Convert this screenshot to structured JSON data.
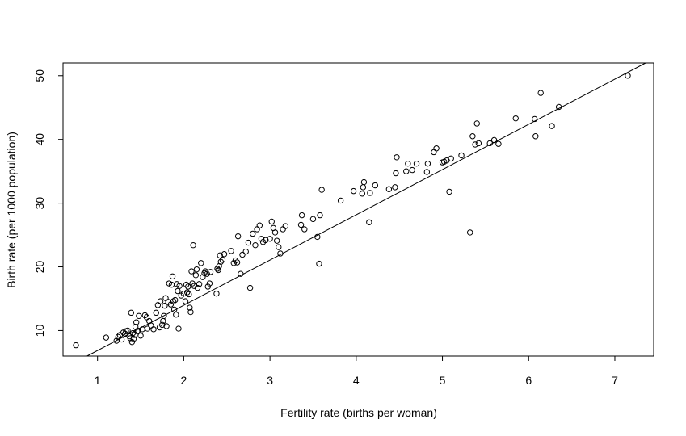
{
  "chart_data": {
    "type": "scatter",
    "title": "",
    "xlabel": "Fertility rate (births per woman)",
    "ylabel": "Birth rate (per 1000 population)",
    "xlim": [
      0.6,
      7.45
    ],
    "ylim": [
      6.0,
      52.0
    ],
    "xticks": [
      1,
      2,
      3,
      4,
      5,
      6,
      7
    ],
    "yticks": [
      10,
      20,
      30,
      40,
      50
    ],
    "grid": false,
    "legend": "none",
    "colors": {
      "points": "#000000",
      "line": "#000000",
      "frame": "#000000"
    },
    "fit_line": {
      "intercept": -0.23,
      "slope": 7.1
    },
    "series": [
      {
        "points": [
          [
            0.75,
            7.7
          ],
          [
            1.1,
            8.9
          ],
          [
            1.22,
            8.4
          ],
          [
            1.24,
            9.0
          ],
          [
            1.26,
            9.3
          ],
          [
            1.28,
            8.6
          ],
          [
            1.3,
            9.7
          ],
          [
            1.32,
            9.5
          ],
          [
            1.33,
            9.9
          ],
          [
            1.35,
            10.0
          ],
          [
            1.37,
            9.1
          ],
          [
            1.38,
            8.8
          ],
          [
            1.39,
            12.8
          ],
          [
            1.4,
            8.2
          ],
          [
            1.41,
            9.6
          ],
          [
            1.42,
            8.7
          ],
          [
            1.43,
            9.3
          ],
          [
            1.44,
            10.6
          ],
          [
            1.45,
            11.3
          ],
          [
            1.46,
            9.9
          ],
          [
            1.47,
            10.0
          ],
          [
            1.48,
            12.3
          ],
          [
            1.5,
            9.2
          ],
          [
            1.52,
            10.2
          ],
          [
            1.55,
            12.4
          ],
          [
            1.57,
            12.1
          ],
          [
            1.58,
            10.3
          ],
          [
            1.6,
            11.5
          ],
          [
            1.62,
            10.8
          ],
          [
            1.65,
            10.2
          ],
          [
            1.68,
            12.8
          ],
          [
            1.7,
            14.0
          ],
          [
            1.72,
            10.5
          ],
          [
            1.73,
            14.6
          ],
          [
            1.75,
            10.9
          ],
          [
            1.76,
            11.5
          ],
          [
            1.77,
            12.3
          ],
          [
            1.78,
            13.9
          ],
          [
            1.79,
            15.1
          ],
          [
            1.8,
            10.7
          ],
          [
            1.82,
            14.5
          ],
          [
            1.83,
            17.4
          ],
          [
            1.85,
            14.1
          ],
          [
            1.86,
            17.2
          ],
          [
            1.87,
            18.5
          ],
          [
            1.88,
            14.6
          ],
          [
            1.89,
            13.3
          ],
          [
            1.9,
            14.8
          ],
          [
            1.91,
            12.5
          ],
          [
            1.92,
            17.3
          ],
          [
            1.93,
            16.2
          ],
          [
            1.94,
            10.3
          ],
          [
            1.95,
            17.0
          ],
          [
            1.97,
            15.5
          ],
          [
            2.0,
            15.8
          ],
          [
            2.02,
            14.6
          ],
          [
            2.03,
            17.2
          ],
          [
            2.04,
            16.0
          ],
          [
            2.05,
            16.9
          ],
          [
            2.06,
            15.7
          ],
          [
            2.07,
            13.6
          ],
          [
            2.08,
            12.9
          ],
          [
            2.09,
            19.3
          ],
          [
            2.1,
            17.4
          ],
          [
            2.11,
            23.4
          ],
          [
            2.12,
            17.0
          ],
          [
            2.14,
            18.7
          ],
          [
            2.15,
            19.6
          ],
          [
            2.16,
            16.7
          ],
          [
            2.18,
            17.3
          ],
          [
            2.2,
            20.6
          ],
          [
            2.22,
            18.4
          ],
          [
            2.24,
            19.0
          ],
          [
            2.25,
            19.3
          ],
          [
            2.27,
            18.9
          ],
          [
            2.28,
            16.9
          ],
          [
            2.3,
            17.4
          ],
          [
            2.31,
            19.2
          ],
          [
            2.38,
            15.8
          ],
          [
            2.39,
            19.7
          ],
          [
            2.4,
            19.5
          ],
          [
            2.41,
            20.1
          ],
          [
            2.42,
            21.8
          ],
          [
            2.43,
            20.8
          ],
          [
            2.45,
            21.1
          ],
          [
            2.47,
            22.0
          ],
          [
            2.55,
            22.5
          ],
          [
            2.58,
            20.6
          ],
          [
            2.6,
            21.0
          ],
          [
            2.62,
            20.7
          ],
          [
            2.63,
            24.8
          ],
          [
            2.66,
            18.9
          ],
          [
            2.68,
            21.9
          ],
          [
            2.72,
            22.4
          ],
          [
            2.75,
            23.8
          ],
          [
            2.77,
            16.7
          ],
          [
            2.8,
            25.2
          ],
          [
            2.83,
            23.4
          ],
          [
            2.85,
            25.9
          ],
          [
            2.88,
            26.5
          ],
          [
            2.9,
            24.4
          ],
          [
            2.92,
            23.9
          ],
          [
            2.95,
            24.2
          ],
          [
            3.0,
            24.4
          ],
          [
            3.02,
            27.1
          ],
          [
            3.04,
            26.1
          ],
          [
            3.06,
            25.4
          ],
          [
            3.08,
            24.1
          ],
          [
            3.1,
            23.1
          ],
          [
            3.12,
            22.1
          ],
          [
            3.15,
            25.9
          ],
          [
            3.18,
            26.4
          ],
          [
            3.36,
            26.6
          ],
          [
            3.37,
            28.1
          ],
          [
            3.4,
            25.9
          ],
          [
            3.5,
            27.5
          ],
          [
            3.55,
            24.7
          ],
          [
            3.57,
            20.5
          ],
          [
            3.58,
            28.1
          ],
          [
            3.6,
            32.1
          ],
          [
            3.82,
            30.4
          ],
          [
            3.97,
            31.9
          ],
          [
            4.07,
            31.5
          ],
          [
            4.08,
            32.5
          ],
          [
            4.09,
            33.3
          ],
          [
            4.15,
            27.0
          ],
          [
            4.16,
            31.6
          ],
          [
            4.22,
            32.8
          ],
          [
            4.38,
            32.2
          ],
          [
            4.45,
            32.5
          ],
          [
            4.46,
            34.7
          ],
          [
            4.47,
            37.2
          ],
          [
            4.58,
            35.0
          ],
          [
            4.6,
            36.2
          ],
          [
            4.65,
            35.2
          ],
          [
            4.7,
            36.2
          ],
          [
            4.82,
            34.9
          ],
          [
            4.83,
            36.2
          ],
          [
            4.9,
            38.0
          ],
          [
            4.93,
            38.6
          ],
          [
            5.0,
            36.4
          ],
          [
            5.02,
            36.5
          ],
          [
            5.05,
            36.7
          ],
          [
            5.08,
            31.8
          ],
          [
            5.1,
            37.0
          ],
          [
            5.22,
            37.5
          ],
          [
            5.32,
            25.4
          ],
          [
            5.35,
            40.5
          ],
          [
            5.38,
            39.2
          ],
          [
            5.4,
            42.5
          ],
          [
            5.42,
            39.4
          ],
          [
            5.55,
            39.4
          ],
          [
            5.6,
            39.9
          ],
          [
            5.65,
            39.3
          ],
          [
            5.85,
            43.3
          ],
          [
            6.07,
            43.2
          ],
          [
            6.08,
            40.5
          ],
          [
            6.14,
            47.3
          ],
          [
            6.27,
            42.1
          ],
          [
            6.35,
            45.1
          ],
          [
            7.15,
            50.0
          ]
        ]
      }
    ]
  }
}
